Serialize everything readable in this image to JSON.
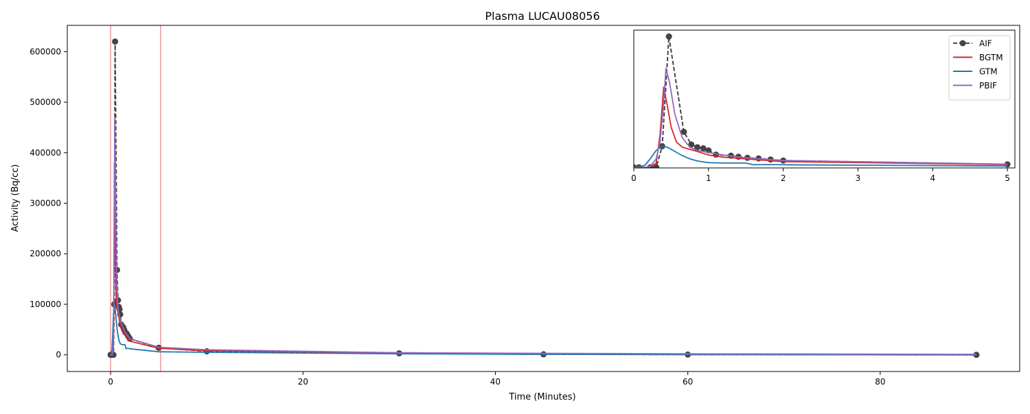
{
  "chart_data": {
    "type": "line",
    "title": "Plasma LUCAU08056",
    "xlabel": "Time (Minutes)",
    "ylabel": "Activity (Bq/cc)",
    "xlim": [
      -4.5,
      94.5
    ],
    "ylim": [
      -33000,
      652000
    ],
    "xticks": [
      0,
      20,
      40,
      60,
      80
    ],
    "yticks": [
      0,
      100000,
      200000,
      300000,
      400000,
      500000,
      600000
    ],
    "grid": false,
    "highlight_span": [
      0,
      5.2
    ],
    "highlight_color": "#f08080",
    "series": [
      {
        "name": "AIF",
        "color": "#444444",
        "style": "dashed-marker",
        "x": [
          0,
          0.07,
          0.22,
          0.3,
          0.38,
          0.47,
          0.67,
          0.77,
          0.85,
          0.93,
          1.0,
          1.1,
          1.3,
          1.4,
          1.52,
          1.67,
          1.83,
          2.0,
          5.0,
          10.0,
          30.0,
          45.0,
          60.0,
          90.0
        ],
        "y": [
          0,
          0,
          0,
          0,
          100000,
          620000,
          168000,
          108000,
          95000,
          90000,
          80000,
          60000,
          55000,
          50000,
          45000,
          42000,
          37000,
          32000,
          14000,
          7000,
          3000,
          1000,
          500,
          0
        ]
      },
      {
        "name": "BGTM",
        "color": "#d62728",
        "style": "solid",
        "x": [
          0,
          0.07,
          0.15,
          0.22,
          0.3,
          0.35,
          0.4,
          0.45,
          0.5,
          0.57,
          0.65,
          0.75,
          0.85,
          1.0,
          1.2,
          1.5,
          2.0,
          5.0,
          10.0,
          30.0,
          45.0,
          60.0,
          90.0
        ],
        "y": [
          0,
          0,
          0,
          2000,
          20000,
          150000,
          380000,
          290000,
          190000,
          120000,
          95000,
          85000,
          75000,
          58000,
          48000,
          40000,
          27000,
          13000,
          8000,
          4000,
          2500,
          1500,
          500
        ]
      },
      {
        "name": "GTM",
        "color": "#1f77b4",
        "style": "solid",
        "x": [
          0,
          0.07,
          0.15,
          0.22,
          0.3,
          0.38,
          0.45,
          0.55,
          0.65,
          0.75,
          0.85,
          1.0,
          1.2,
          1.5,
          1.6,
          1.8,
          2.0,
          5.0,
          10.0,
          30.0,
          45.0,
          60.0,
          90.0
        ],
        "y": [
          0,
          0,
          10000,
          40000,
          80000,
          100000,
          95000,
          75000,
          55000,
          40000,
          30000,
          22000,
          20000,
          20000,
          12000,
          13000,
          12000,
          6000,
          5000,
          2000,
          1000,
          500,
          0
        ]
      },
      {
        "name": "PBIF",
        "color": "#9467bd",
        "style": "solid",
        "x": [
          0,
          0.07,
          0.15,
          0.22,
          0.3,
          0.35,
          0.4,
          0.43,
          0.48,
          0.55,
          0.65,
          0.75,
          0.85,
          1.0,
          1.2,
          1.5,
          2.0,
          5.0,
          10.0,
          30.0,
          45.0,
          60.0,
          90.0
        ],
        "y": [
          0,
          0,
          0,
          5000,
          40000,
          120000,
          300000,
          470000,
          400000,
          250000,
          140000,
          95000,
          80000,
          70000,
          58000,
          45000,
          32000,
          15000,
          10000,
          4000,
          3000,
          2000,
          1000
        ]
      }
    ],
    "inset": {
      "xlim": [
        0,
        5.1
      ],
      "ylim": [
        -3000,
        650000
      ],
      "xticks": [
        0,
        1,
        2,
        3,
        4,
        5
      ],
      "yticks": [],
      "legend_placement": "top-right"
    }
  }
}
